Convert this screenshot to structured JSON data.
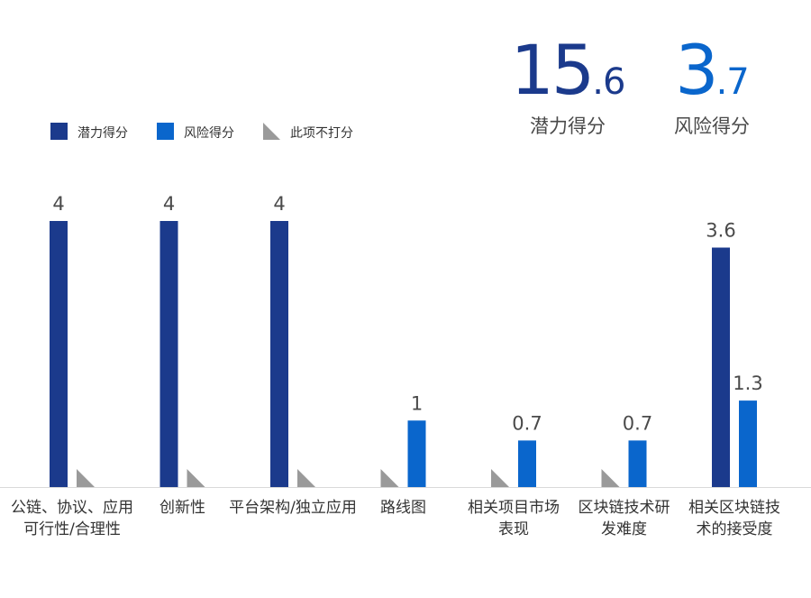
{
  "summary": {
    "potential": {
      "int": "15",
      "dec": ".6",
      "label": "潜力得分"
    },
    "risk": {
      "int": "3",
      "dec": ".7",
      "label": "风险得分"
    }
  },
  "legend": [
    {
      "key": "potential",
      "label": "潜力得分",
      "color": "#1b3a8c"
    },
    {
      "key": "risk",
      "label": "风险得分",
      "color": "#0a66cc"
    },
    {
      "key": "none",
      "label": "此项不打分",
      "color": "#9a9a9a"
    }
  ],
  "chart_data": {
    "type": "bar",
    "categories": [
      [
        "公链、协议、应用",
        "可行性/合理性"
      ],
      [
        "创新性"
      ],
      [
        "平台架构/独立应用"
      ],
      [
        "路线图"
      ],
      [
        "相关项目市场",
        "表现"
      ],
      [
        "区块链技术研",
        "发难度"
      ],
      [
        "相关区块链技",
        "术的接受度"
      ]
    ],
    "series": [
      {
        "name": "潜力得分",
        "color": "#1b3a8c",
        "values": [
          4,
          4,
          4,
          null,
          null,
          null,
          3.6
        ]
      },
      {
        "name": "风险得分",
        "color": "#0a66cc",
        "values": [
          null,
          null,
          null,
          1,
          0.7,
          0.7,
          1.3
        ]
      }
    ],
    "unscored": [
      "risk",
      "risk",
      "risk",
      "potential",
      "potential",
      "potential",
      null
    ],
    "value_labels": [
      [
        "4",
        null
      ],
      [
        "4",
        null
      ],
      [
        "4",
        null
      ],
      [
        null,
        "1"
      ],
      [
        null,
        "0.7"
      ],
      [
        null,
        "0.7"
      ],
      [
        "3.6",
        "1.3"
      ]
    ],
    "ylim": [
      0,
      4
    ],
    "legend_position": "top-left"
  }
}
